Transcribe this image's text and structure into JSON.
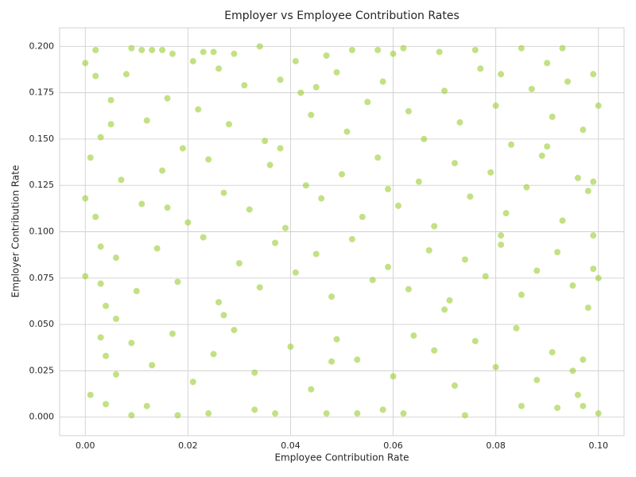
{
  "chart_data": {
    "type": "scatter",
    "title": "Employer vs Employee Contribution Rates",
    "x_label": "Employee Contribution Rate",
    "y_label": "Employer Contribution Rate",
    "color": "#9acd32",
    "opacity": 0.6,
    "grid": true,
    "xlim": [
      -0.005,
      0.105
    ],
    "ylim": [
      -0.01,
      0.21
    ],
    "xticks": [
      {
        "value": 0,
        "label": "0.00"
      },
      {
        "value": 0.02,
        "label": "0.02"
      },
      {
        "value": 0.04,
        "label": "0.04"
      },
      {
        "value": 0.06,
        "label": "0.06"
      },
      {
        "value": 0.08,
        "label": "0.08"
      },
      {
        "value": 0.1,
        "label": "0.10"
      }
    ],
    "yticks": [
      {
        "value": 0,
        "label": "0.000"
      },
      {
        "value": 0.025,
        "label": "0.025"
      },
      {
        "value": 0.05,
        "label": "0.050"
      },
      {
        "value": 0.075,
        "label": "0.075"
      },
      {
        "value": 0.1,
        "label": "0.100"
      },
      {
        "value": 0.125,
        "label": "0.125"
      },
      {
        "value": 0.15,
        "label": "0.150"
      },
      {
        "value": 0.175,
        "label": "0.175"
      },
      {
        "value": 0.2,
        "label": "0.200"
      }
    ],
    "x": [
      0.0,
      0.001,
      0.0,
      0.002,
      0.002,
      0.003,
      0.005,
      0.009,
      0.011,
      0.013,
      0.015,
      0.017,
      0.021,
      0.023,
      0.025,
      0.029,
      0.034,
      0.041,
      0.045,
      0.047,
      0.052,
      0.057,
      0.06,
      0.062,
      0.069,
      0.076,
      0.081,
      0.085,
      0.09,
      0.093,
      0.099,
      0.1,
      0.001,
      0.004,
      0.009,
      0.012,
      0.018,
      0.024,
      0.033,
      0.037,
      0.047,
      0.053,
      0.058,
      0.062,
      0.074,
      0.085,
      0.092,
      0.097,
      0.1,
      0.0,
      0.003,
      0.004,
      0.006,
      0.003,
      0.004,
      0.006,
      0.003,
      0.002,
      0.1,
      0.099,
      0.098,
      0.097,
      0.098,
      0.099,
      0.099,
      0.097,
      0.008,
      0.012,
      0.016,
      0.019,
      0.022,
      0.026,
      0.028,
      0.031,
      0.035,
      0.038,
      0.042,
      0.044,
      0.049,
      0.051,
      0.055,
      0.058,
      0.063,
      0.066,
      0.07,
      0.073,
      0.077,
      0.08,
      0.083,
      0.087,
      0.091,
      0.094,
      0.007,
      0.011,
      0.015,
      0.02,
      0.024,
      0.027,
      0.032,
      0.036,
      0.039,
      0.043,
      0.046,
      0.05,
      0.054,
      0.057,
      0.061,
      0.065,
      0.068,
      0.072,
      0.075,
      0.079,
      0.082,
      0.086,
      0.089,
      0.093,
      0.096,
      0.006,
      0.01,
      0.014,
      0.018,
      0.023,
      0.026,
      0.03,
      0.034,
      0.037,
      0.041,
      0.045,
      0.048,
      0.052,
      0.056,
      0.059,
      0.063,
      0.067,
      0.071,
      0.074,
      0.078,
      0.081,
      0.085,
      0.088,
      0.092,
      0.095,
      0.009,
      0.013,
      0.017,
      0.021,
      0.025,
      0.029,
      0.033,
      0.04,
      0.044,
      0.049,
      0.053,
      0.06,
      0.064,
      0.068,
      0.072,
      0.076,
      0.08,
      0.084,
      0.088,
      0.091,
      0.095,
      0.005,
      0.016,
      0.027,
      0.038,
      0.048,
      0.059,
      0.07,
      0.081,
      0.09,
      0.096
    ],
    "values": [
      0.191,
      0.14,
      0.118,
      0.198,
      0.184,
      0.151,
      0.171,
      0.199,
      0.198,
      0.198,
      0.198,
      0.196,
      0.192,
      0.197,
      0.197,
      0.196,
      0.2,
      0.192,
      0.178,
      0.195,
      0.198,
      0.198,
      0.196,
      0.199,
      0.197,
      0.198,
      0.185,
      0.199,
      0.191,
      0.199,
      0.185,
      0.168,
      0.012,
      0.007,
      0.001,
      0.006,
      0.001,
      0.002,
      0.004,
      0.002,
      0.002,
      0.002,
      0.004,
      0.002,
      0.001,
      0.006,
      0.005,
      0.006,
      0.002,
      0.076,
      0.072,
      0.06,
      0.053,
      0.043,
      0.033,
      0.023,
      0.092,
      0.108,
      0.075,
      0.08,
      0.059,
      0.031,
      0.122,
      0.127,
      0.098,
      0.155,
      0.185,
      0.16,
      0.172,
      0.145,
      0.166,
      0.188,
      0.158,
      0.179,
      0.149,
      0.182,
      0.175,
      0.163,
      0.186,
      0.154,
      0.17,
      0.181,
      0.165,
      0.15,
      0.176,
      0.159,
      0.188,
      0.168,
      0.147,
      0.177,
      0.162,
      0.181,
      0.128,
      0.115,
      0.133,
      0.105,
      0.139,
      0.121,
      0.112,
      0.136,
      0.102,
      0.125,
      0.118,
      0.131,
      0.108,
      0.14,
      0.114,
      0.127,
      0.103,
      0.137,
      0.119,
      0.132,
      0.11,
      0.124,
      0.141,
      0.106,
      0.129,
      0.086,
      0.068,
      0.091,
      0.073,
      0.097,
      0.062,
      0.083,
      0.07,
      0.094,
      0.078,
      0.088,
      0.065,
      0.096,
      0.074,
      0.081,
      0.069,
      0.09,
      0.063,
      0.085,
      0.076,
      0.093,
      0.066,
      0.079,
      0.089,
      0.071,
      0.04,
      0.028,
      0.045,
      0.019,
      0.034,
      0.047,
      0.024,
      0.038,
      0.015,
      0.042,
      0.031,
      0.022,
      0.044,
      0.036,
      0.017,
      0.041,
      0.027,
      0.048,
      0.02,
      0.035,
      0.025,
      0.158,
      0.113,
      0.055,
      0.145,
      0.03,
      0.123,
      0.058,
      0.098,
      0.146,
      0.012
    ]
  }
}
